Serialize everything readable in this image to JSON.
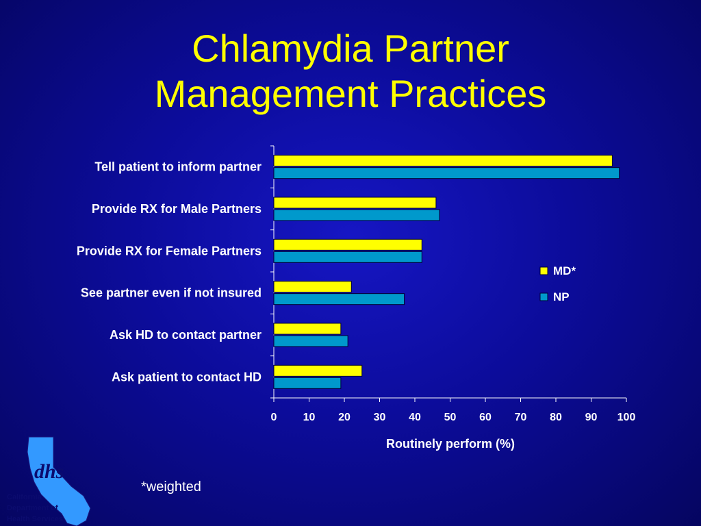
{
  "slide": {
    "title_line1": "Chlamydia Partner",
    "title_line2": "Management Practices",
    "footnote": "*weighted"
  },
  "logo": {
    "lettering": "dhs",
    "line1": "California",
    "line2": "Department of",
    "line3": "Health Services"
  },
  "chart_data": {
    "type": "bar",
    "orientation": "horizontal",
    "categories": [
      "Tell patient to inform partner",
      "Provide RX for Male Partners",
      "Provide RX for Female Partners",
      "See partner even if not insured",
      "Ask HD to contact partner",
      "Ask patient to contact HD"
    ],
    "series": [
      {
        "name": "MD*",
        "color": "#ffff00",
        "values": [
          96,
          46,
          42,
          22,
          19,
          25
        ]
      },
      {
        "name": "NP",
        "color": "#0099cc",
        "values": [
          98,
          47,
          42,
          37,
          21,
          19
        ]
      }
    ],
    "xlabel": "Routinely perform (%)",
    "ylabel": "",
    "xlim": [
      0,
      100
    ],
    "xticks": [
      0,
      10,
      20,
      30,
      40,
      50,
      60,
      70,
      80,
      90,
      100
    ],
    "grid": false,
    "legend": "right"
  }
}
